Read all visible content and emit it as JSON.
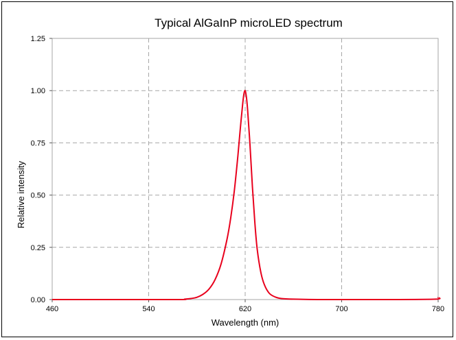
{
  "chart_data": {
    "type": "line",
    "title": "Typical AlGaInP microLED spectrum",
    "xlabel": "Wavelength (nm)",
    "ylabel": "Relative intensity",
    "xlim": [
      460,
      780
    ],
    "ylim": [
      0,
      1.25
    ],
    "x_ticks": [
      "460",
      "540",
      "620",
      "700",
      "780"
    ],
    "y_ticks": [
      "0.00",
      "0.25",
      "0.50",
      "0.75",
      "1.00",
      "1.25"
    ],
    "grid": true,
    "series": [
      {
        "color": "#e8001c",
        "x": [
          460,
          560,
          570,
          575,
          580,
          585,
          590,
          595,
          600,
          605,
          608,
          611,
          614,
          616,
          618,
          619,
          620,
          621,
          622,
          624,
          626,
          628,
          630,
          633,
          636,
          640,
          645,
          650,
          660,
          680,
          700,
          740,
          778,
          780
        ],
        "y": [
          0.0,
          0.0,
          0.002,
          0.005,
          0.011,
          0.025,
          0.05,
          0.095,
          0.17,
          0.29,
          0.39,
          0.52,
          0.69,
          0.82,
          0.94,
          0.985,
          1.0,
          0.97,
          0.91,
          0.74,
          0.54,
          0.37,
          0.24,
          0.13,
          0.07,
          0.03,
          0.012,
          0.005,
          0.002,
          0.0,
          0.0,
          0.0,
          0.002,
          0.01
        ]
      }
    ]
  }
}
